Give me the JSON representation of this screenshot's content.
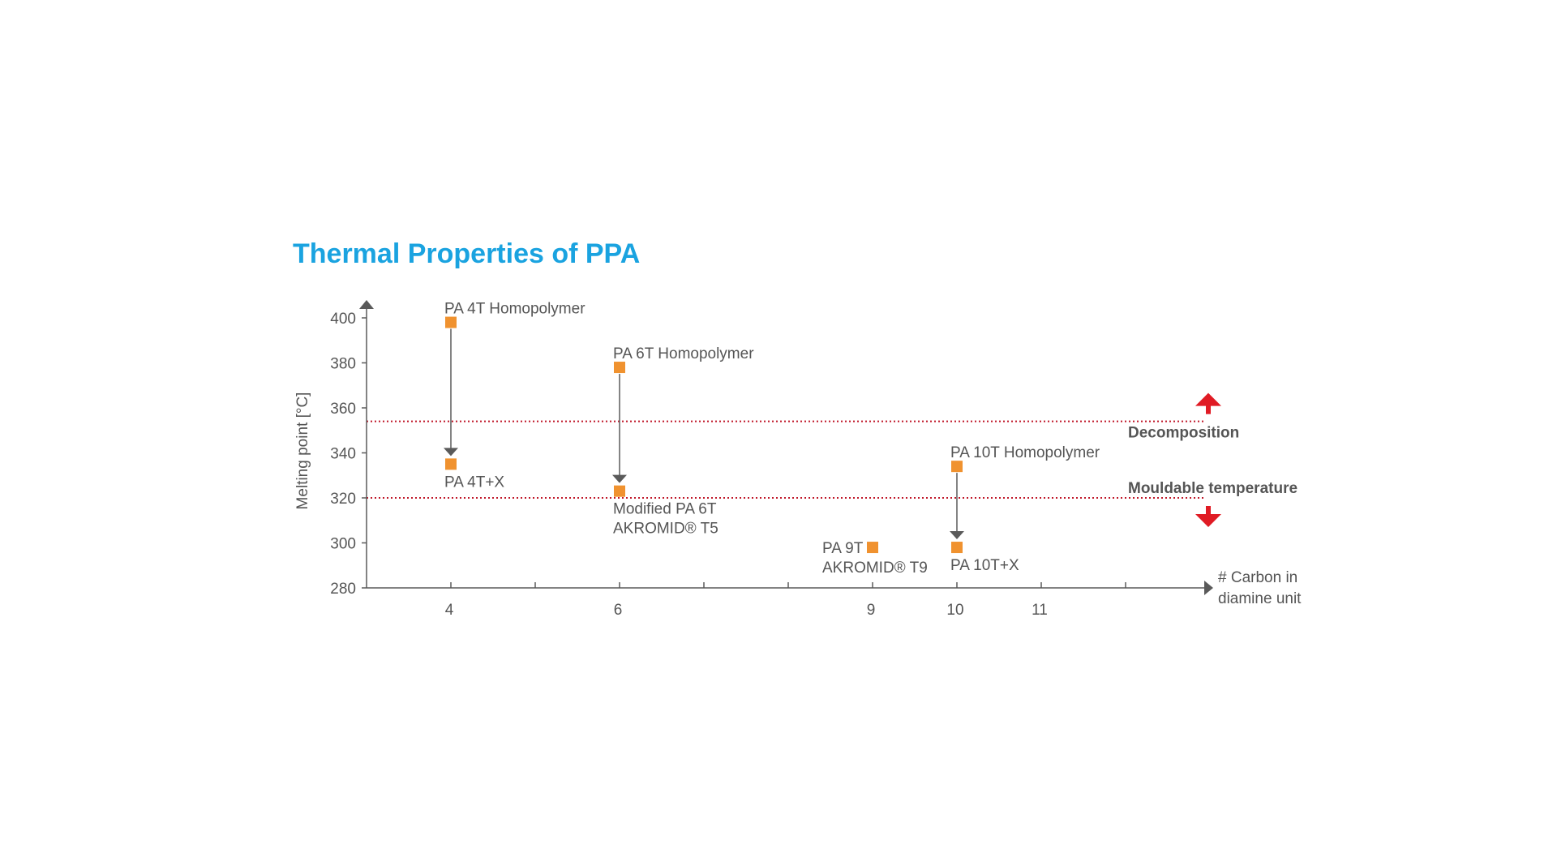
{
  "chart_data": {
    "type": "scatter",
    "title": "Thermal Properties of PPA",
    "ylabel": "Melting point [°C]",
    "xlabel_lines": [
      "# Carbon in",
      "diamine unit"
    ],
    "ylim": [
      280,
      400
    ],
    "xlim": [
      3,
      13
    ],
    "y_ticks": [
      280,
      300,
      320,
      340,
      360,
      380,
      400
    ],
    "x_tick_marks": [
      4,
      5,
      6,
      7,
      8,
      9,
      10,
      11,
      12
    ],
    "x_tick_labels": [
      "4",
      "6",
      "9",
      "10",
      "11"
    ],
    "x_tick_label_values": [
      4,
      6,
      9,
      10,
      11
    ],
    "grid": false,
    "colors": {
      "points": "#f0922f",
      "limits": "#c0182a",
      "limit_arrows": "#e01b24",
      "axis": "#5a5a5a",
      "title": "#1aa3e0"
    },
    "points": [
      {
        "x": 4,
        "y": 398,
        "label_lines": [
          "PA 4T Homopolymer"
        ],
        "label_pos": "above"
      },
      {
        "x": 4,
        "y": 335,
        "label_lines": [
          "PA 4T+X"
        ],
        "label_pos": "below"
      },
      {
        "x": 6,
        "y": 378,
        "label_lines": [
          "PA 6T Homopolymer"
        ],
        "label_pos": "above"
      },
      {
        "x": 6,
        "y": 323,
        "label_lines": [
          "Modified PA 6T",
          "AKROMID® T5"
        ],
        "label_pos": "below"
      },
      {
        "x": 9,
        "y": 298,
        "label_lines": [
          "PA 9T",
          "AKROMID® T9"
        ],
        "label_pos": "left"
      },
      {
        "x": 10,
        "y": 334,
        "label_lines": [
          "PA 10T Homopolymer"
        ],
        "label_pos": "above"
      },
      {
        "x": 10,
        "y": 298,
        "label_lines": [
          "PA 10T+X"
        ],
        "label_pos": "below"
      }
    ],
    "arrows": [
      {
        "x": 4,
        "from": 398,
        "to": 335
      },
      {
        "x": 6,
        "from": 378,
        "to": 323
      },
      {
        "x": 10,
        "from": 334,
        "to": 298
      }
    ],
    "limits": [
      {
        "name": "Decomposition",
        "y": 354,
        "arrow": "up"
      },
      {
        "name": "Mouldable temperature",
        "y": 320,
        "arrow": "down"
      }
    ]
  }
}
